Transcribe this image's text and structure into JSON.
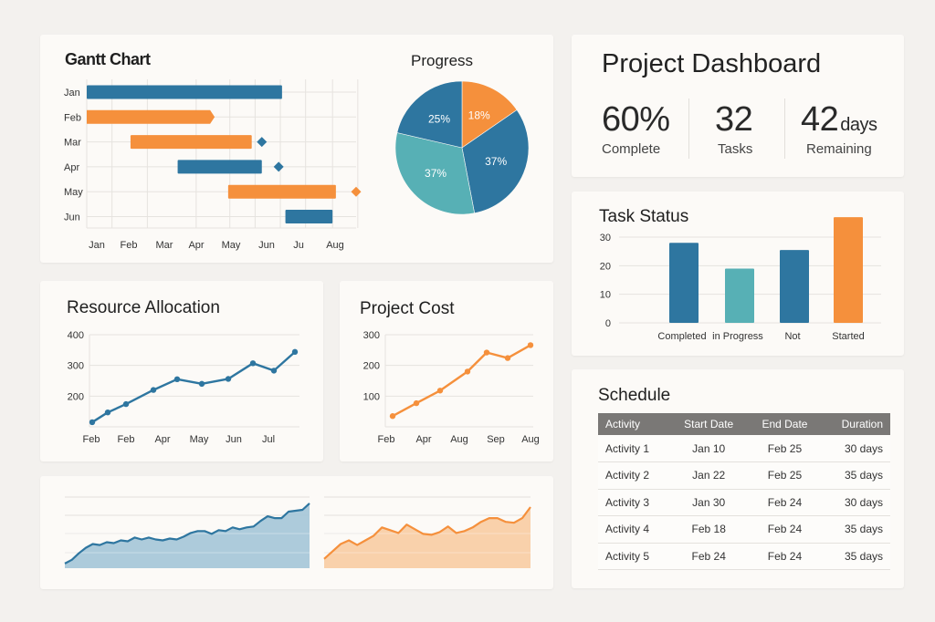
{
  "colors": {
    "blue": "#2e76a0",
    "orange": "#f5903c",
    "teal": "#57b0b5",
    "table_header": "#7a7876",
    "blue_fill": "#a9c8d9",
    "orange_fill": "#f9cfa6"
  },
  "dashboard": {
    "title": "Project Dashboard",
    "kpis": [
      {
        "value": "60%",
        "unit": "",
        "label": "Complete"
      },
      {
        "value": "32",
        "unit": "",
        "label": "Tasks"
      },
      {
        "value": "42",
        "unit": "days",
        "label": "Remaining"
      }
    ]
  },
  "schedule": {
    "title": "Schedule",
    "columns": [
      "Activity",
      "Start Date",
      "End Date",
      "Duration"
    ],
    "rows": [
      [
        "Activity 1",
        "Jan 10",
        "Feb 25",
        "30 days"
      ],
      [
        "Activity 2",
        "Jan 22",
        "Feb 25",
        "35 days"
      ],
      [
        "Activity 3",
        "Jan 30",
        "Feb 24",
        "30 days"
      ],
      [
        "Activity 4",
        "Feb 18",
        "Feb 24",
        "35 days"
      ],
      [
        "Activity 5",
        "Feb 24",
        "Feb 24",
        "35 days"
      ]
    ]
  },
  "chart_data": [
    {
      "id": "gantt",
      "type": "bar",
      "title": "Gantt Chart",
      "row_labels": [
        "Jan",
        "Feb",
        "Mar",
        "Apr",
        "May",
        "Jun"
      ],
      "x_tick_labels": [
        "Jan",
        "Feb",
        "Mar",
        "Apr",
        "May",
        "Jun",
        "Ju",
        "Aug"
      ],
      "xlim": [
        0,
        8
      ],
      "tasks": [
        {
          "row": "Jan",
          "start": 0,
          "end": 5.8,
          "color": "blue",
          "milestone": null,
          "arrow": false
        },
        {
          "row": "Feb",
          "start": 0,
          "end": 3.8,
          "color": "orange",
          "milestone": null,
          "arrow": true
        },
        {
          "row": "Mar",
          "start": 1.3,
          "end": 4.9,
          "color": "orange",
          "milestone": 5.2,
          "milestone_color": "blue",
          "arrow": false
        },
        {
          "row": "Apr",
          "start": 2.7,
          "end": 5.2,
          "color": "blue",
          "milestone": 5.7,
          "milestone_color": "blue",
          "arrow": false
        },
        {
          "row": "May",
          "start": 4.2,
          "end": 7.4,
          "color": "orange",
          "milestone": 8.0,
          "milestone_color": "orange",
          "arrow": false
        },
        {
          "row": "Jun",
          "start": 5.9,
          "end": 7.3,
          "color": "blue",
          "milestone": null,
          "arrow": false
        }
      ],
      "grid": true
    },
    {
      "id": "progress",
      "type": "pie",
      "title": "Progress",
      "slices": [
        {
          "label": "18%",
          "value": 18,
          "color": "orange"
        },
        {
          "label": "37%",
          "value": 37,
          "color": "blue"
        },
        {
          "label": "37%",
          "value": 37,
          "color": "teal"
        },
        {
          "label": "25%",
          "value": 25,
          "color": "blue"
        }
      ],
      "start": "top",
      "direction": "clockwise"
    },
    {
      "id": "task-status",
      "type": "bar",
      "title": "Task Status",
      "categories": [
        "Completed",
        "In Progress",
        "Not",
        "Started"
      ],
      "values": [
        28,
        19,
        25.5,
        37
      ],
      "bar_colors": [
        "blue",
        "teal",
        "blue",
        "orange"
      ],
      "ylim": [
        0,
        30
      ],
      "y_ticks": [
        0,
        10,
        20,
        30
      ],
      "grid": true
    },
    {
      "id": "resource-allocation",
      "type": "line",
      "title": "Resource Allocation",
      "x_tick_labels": [
        "Feb",
        "Feb",
        "Apr",
        "May",
        "Jun",
        "Jul"
      ],
      "values": [
        115,
        147,
        174,
        220,
        255,
        240,
        256,
        307,
        283,
        344
      ],
      "color": "blue",
      "ylim": [
        100,
        400
      ],
      "y_ticks": [
        200,
        300,
        400
      ],
      "grid": true
    },
    {
      "id": "project-cost",
      "type": "line",
      "title": "Project Cost",
      "x_tick_labels": [
        "Feb",
        "Apr",
        "Aug",
        "Sep",
        "Aug"
      ],
      "values": [
        35,
        77,
        118,
        180,
        242,
        224,
        266
      ],
      "color": "orange",
      "ylim": [
        0,
        300
      ],
      "y_ticks": [
        100,
        200,
        300
      ],
      "grid": true
    },
    {
      "id": "trend-blue",
      "type": "area",
      "title": "",
      "values": [
        0.45,
        0.65,
        1.0,
        1.3,
        1.5,
        1.45,
        1.6,
        1.55,
        1.7,
        1.65,
        1.85,
        1.75,
        1.85,
        1.75,
        1.7,
        1.8,
        1.75,
        1.9,
        2.1,
        2.2,
        2.2,
        2.05,
        2.25,
        2.2,
        2.4,
        2.3,
        2.4,
        2.45,
        2.75,
        3.0,
        2.9,
        2.9,
        3.25,
        3.3,
        3.35,
        3.7
      ],
      "color": "blue",
      "ylim": [
        0,
        4
      ],
      "grid": true
    },
    {
      "id": "trend-orange",
      "type": "area",
      "title": "",
      "values": [
        0.7,
        1.1,
        1.5,
        1.7,
        1.45,
        1.7,
        1.95,
        2.4,
        2.25,
        2.1,
        2.55,
        2.3,
        2.05,
        2.0,
        2.15,
        2.45,
        2.1,
        2.2,
        2.4,
        2.7,
        2.9,
        2.9,
        2.7,
        2.65,
        2.9,
        3.5
      ],
      "color": "orange",
      "ylim": [
        0,
        4
      ],
      "grid": true
    }
  ]
}
